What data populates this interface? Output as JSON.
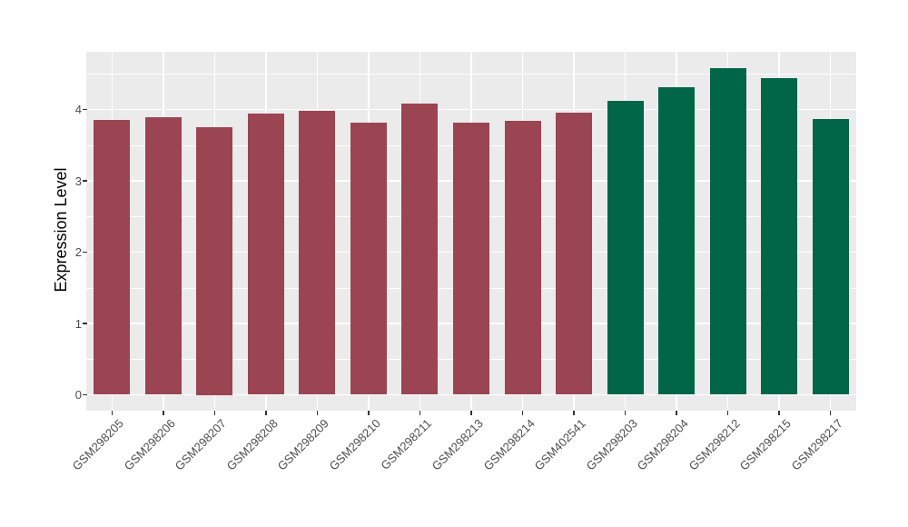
{
  "chart_data": {
    "type": "bar",
    "title": "",
    "ylabel": "Expression Level",
    "xlabel": "",
    "categories": [
      "GSM298205",
      "GSM298206",
      "GSM298207",
      "GSM298208",
      "GSM298209",
      "GSM298210",
      "GSM298211",
      "GSM298213",
      "GSM298214",
      "GSM402541",
      "GSM298203",
      "GSM298204",
      "GSM298212",
      "GSM298215",
      "GSM298217"
    ],
    "values": [
      3.85,
      3.89,
      3.75,
      3.94,
      3.98,
      3.81,
      4.08,
      3.81,
      3.84,
      3.96,
      4.12,
      4.31,
      4.58,
      4.44,
      3.86
    ],
    "bar_groups": [
      "group1",
      "group1",
      "group1",
      "group1",
      "group1",
      "group1",
      "group1",
      "group1",
      "group1",
      "group1",
      "group2",
      "group2",
      "group2",
      "group2",
      "group2"
    ],
    "group_colors": {
      "group1": "#9B4452",
      "group2": "#006647"
    },
    "yticks": [
      "0",
      "1",
      "2",
      "3",
      "4"
    ],
    "ylim": [
      -0.22,
      4.81
    ],
    "grid": "on",
    "legend": "none",
    "colors": {
      "panel_background": "#EBEBEB",
      "gridline": "#FFFFFF",
      "tick_mark": "#333333",
      "tick_label": "#4D4D4D",
      "axis_title": "#000000",
      "figure_background": "#FFFFFF"
    }
  }
}
